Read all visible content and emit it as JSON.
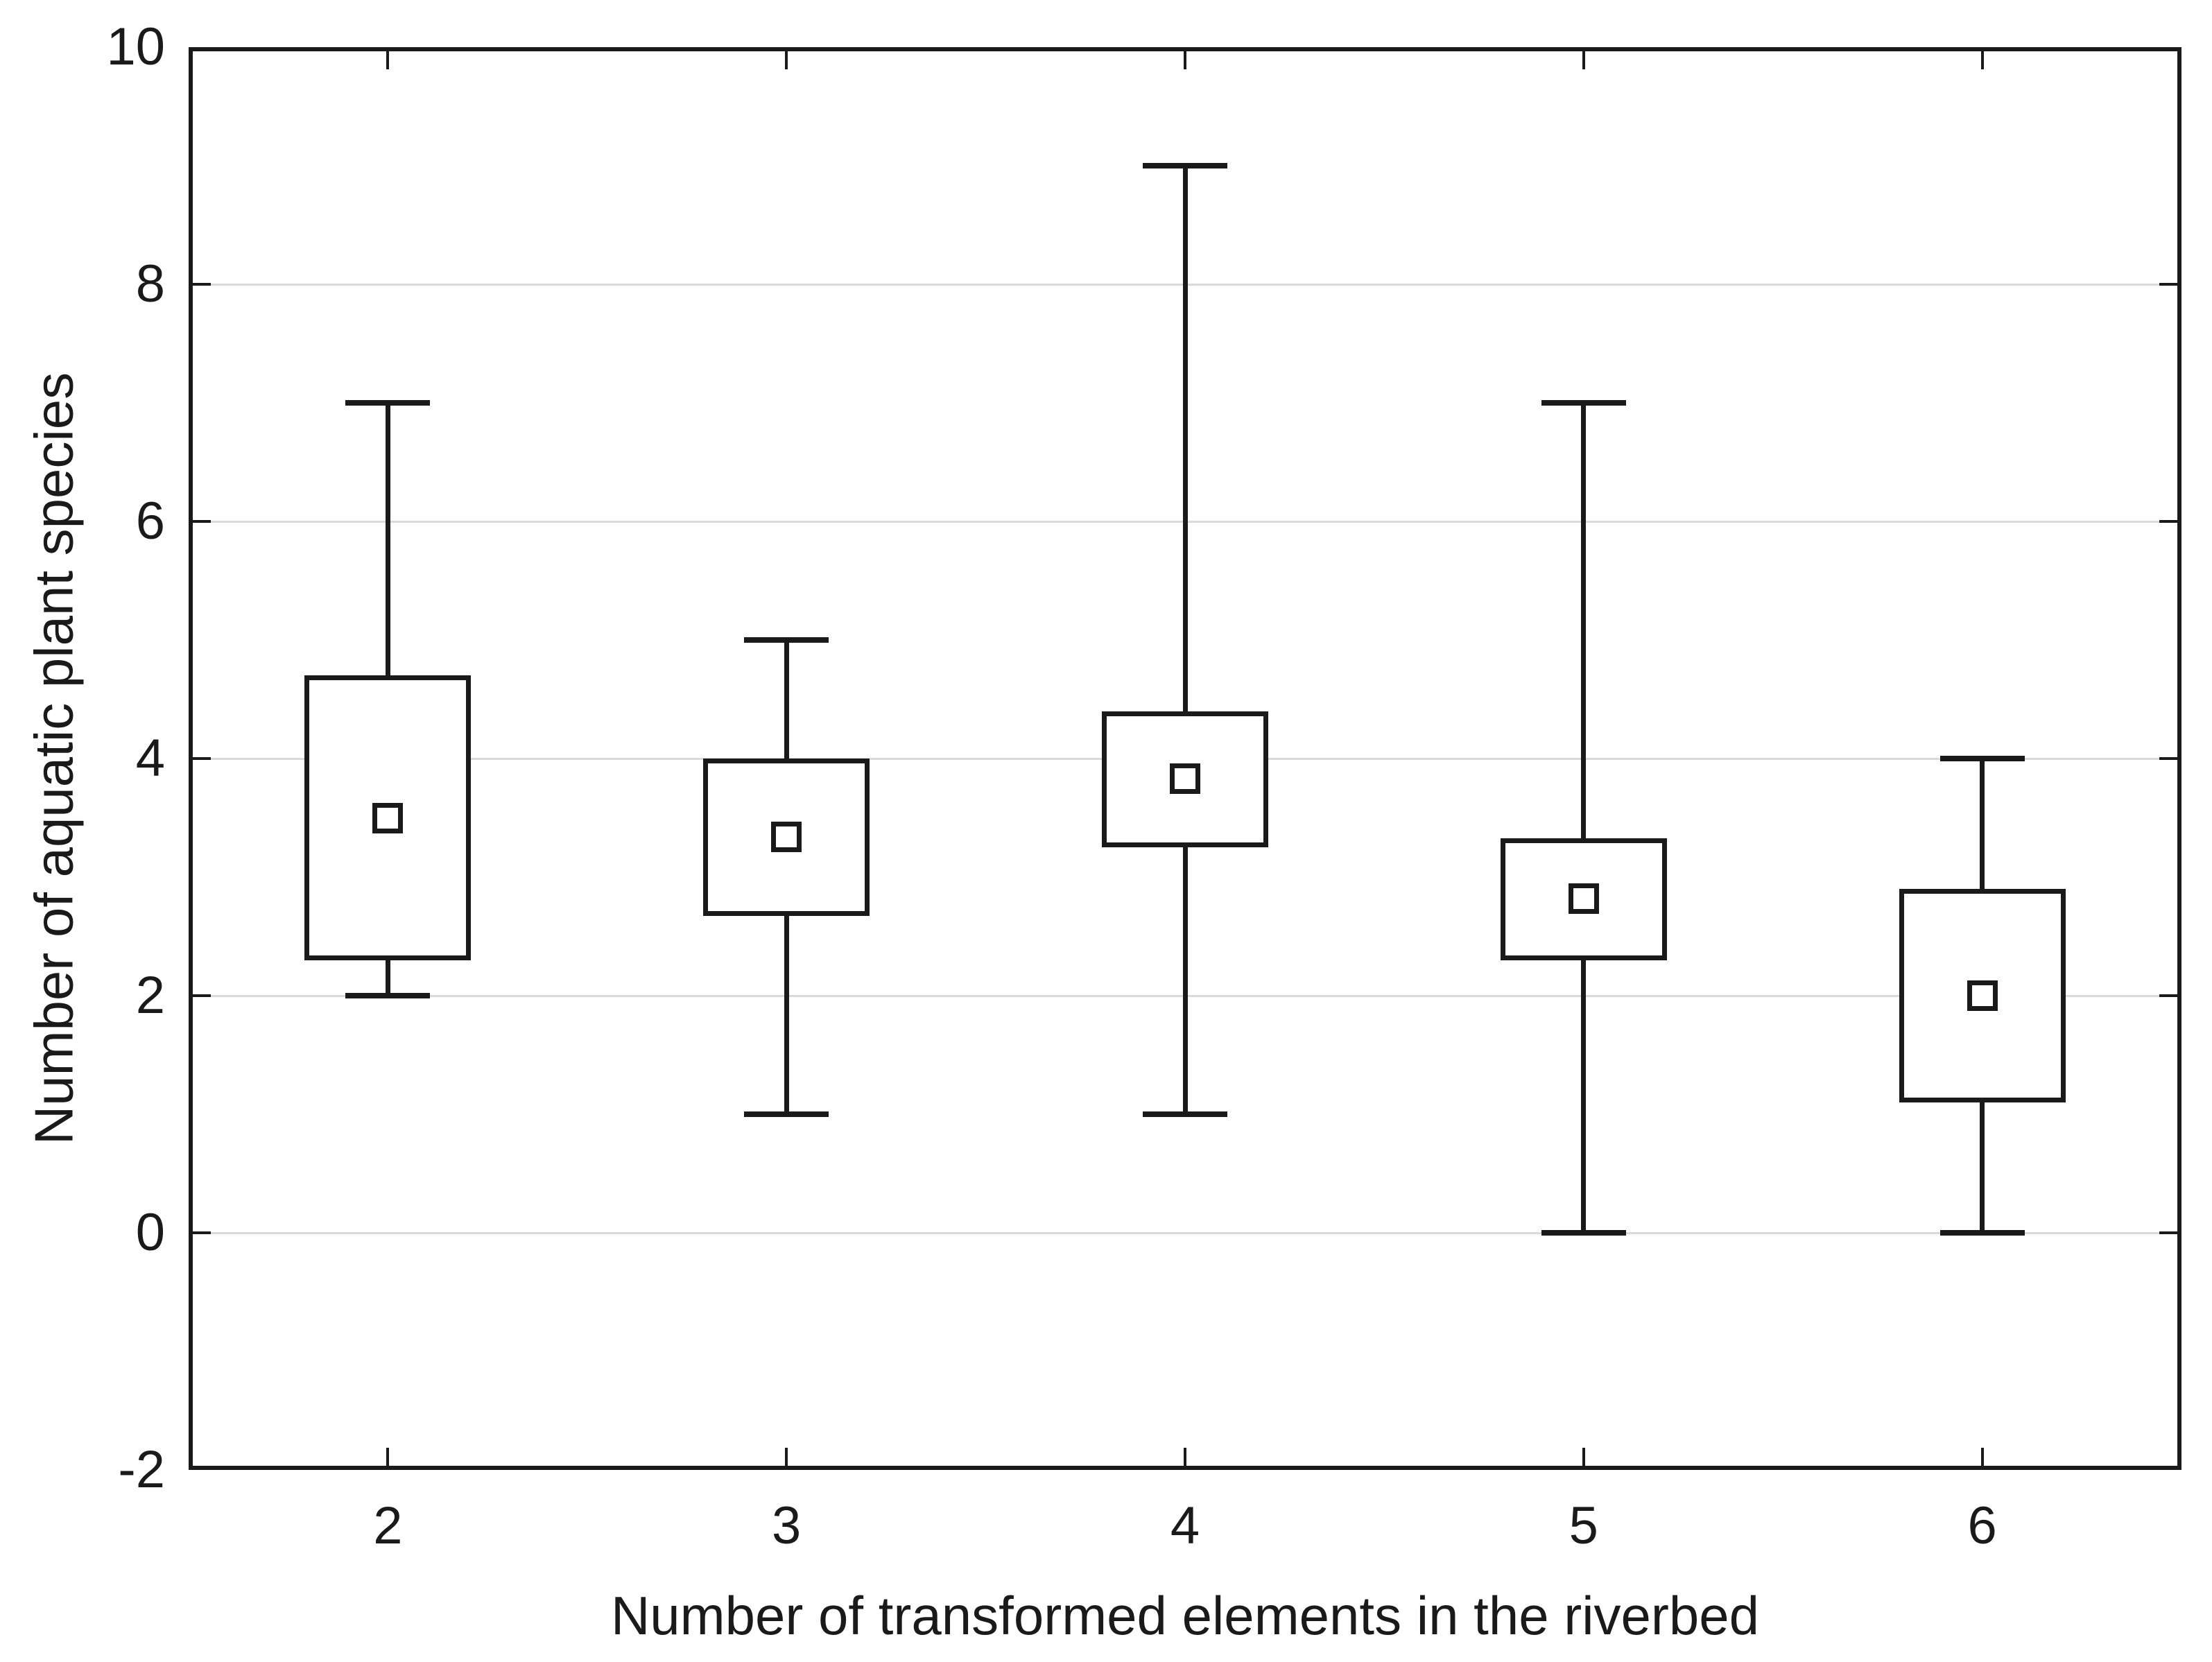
{
  "figure": {
    "background": "#ffffff",
    "frame_color": "#1a1a1a",
    "grid_color": "#dadada",
    "text_color": "#1a1a1a"
  },
  "axes": {
    "y": {
      "title": "Number of aquatic plant species",
      "min": -2,
      "max": 10,
      "tick_labels": [
        "10",
        "8",
        "6",
        "4",
        "2",
        "0",
        "-2"
      ],
      "tick_values": [
        10,
        8,
        6,
        4,
        2,
        0,
        -2
      ],
      "grid_values": [
        8,
        6,
        4,
        2,
        0
      ]
    },
    "x": {
      "title": "Number of transformed elements in the riverbed",
      "tick_labels": [
        "2",
        "3",
        "4",
        "5",
        "6"
      ]
    }
  },
  "chart_data": {
    "type": "box",
    "box_style": "mean-sd box with min-max whiskers and square mean marker",
    "title": "",
    "xlabel": "Number of transformed elements in the riverbed",
    "ylabel": "Number of aquatic plant species",
    "ylim": [
      -2,
      10
    ],
    "grid": "horizontal",
    "legend": false,
    "categories": [
      "2",
      "3",
      "4",
      "5",
      "6"
    ],
    "series": [
      {
        "category": "2",
        "mean": 3.5,
        "box_low": 2.3,
        "box_high": 4.7,
        "whisker_low": 2,
        "whisker_high": 7
      },
      {
        "category": "3",
        "mean": 3.34,
        "box_low": 2.67,
        "box_high": 4.0,
        "whisker_low": 1,
        "whisker_high": 5
      },
      {
        "category": "4",
        "mean": 3.83,
        "box_low": 3.25,
        "box_high": 4.4,
        "whisker_low": 1,
        "whisker_high": 9
      },
      {
        "category": "5",
        "mean": 2.82,
        "box_low": 2.3,
        "box_high": 3.33,
        "whisker_low": 0,
        "whisker_high": 7
      },
      {
        "category": "6",
        "mean": 2.0,
        "box_low": 1.1,
        "box_high": 2.9,
        "whisker_low": 0,
        "whisker_high": 4
      }
    ]
  }
}
